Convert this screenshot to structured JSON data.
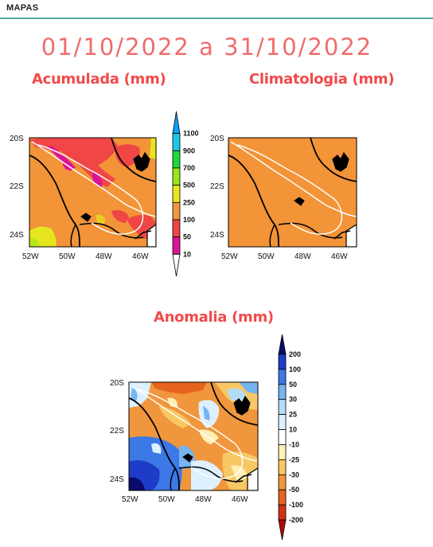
{
  "header": {
    "title": "MAPAS"
  },
  "period": "01/10/2022 a 31/10/2022",
  "maps": {
    "accumulated": {
      "title": "Acumulada (mm)",
      "lat_labels": [
        "20S",
        "22S",
        "24S"
      ],
      "lon_labels": [
        "52W",
        "50W",
        "48W",
        "46W"
      ]
    },
    "climatology": {
      "title": "Climatologia (mm)",
      "lat_labels": [
        "20S",
        "22S",
        "24S"
      ],
      "lon_labels": [
        "52W",
        "50W",
        "48W",
        "46W"
      ]
    },
    "anomaly": {
      "title": "Anomalia (mm)",
      "lat_labels": [
        "20S",
        "22S",
        "24S"
      ],
      "lon_labels": [
        "52W",
        "50W",
        "48W",
        "46W"
      ]
    }
  },
  "colorbars": {
    "precip": {
      "labels": [
        "1100",
        "900",
        "700",
        "500",
        "250",
        "100",
        "50",
        "10"
      ],
      "colors": [
        "#0aa0ff",
        "#1ec6e6",
        "#1ed73c",
        "#96e61e",
        "#e6e61e",
        "#f0963c",
        "#f04646",
        "#dc1496",
        "#ffffff"
      ]
    },
    "anomaly": {
      "labels": [
        "200",
        "100",
        "50",
        "30",
        "25",
        "10",
        "-10",
        "-25",
        "-30",
        "-50",
        "-100",
        "-200"
      ],
      "colors": [
        "#0a0a6e",
        "#1e3cc8",
        "#3c78e6",
        "#78b4f0",
        "#b4dcf8",
        "#dcf0ff",
        "#ffffff",
        "#fff0b4",
        "#f8c864",
        "#f0963c",
        "#e6641e",
        "#d23214",
        "#b40a0a"
      ]
    }
  },
  "colors": {
    "title_red": "#f24a4a",
    "period_red": "#f06c6c",
    "header_rule": "#5aa6a8",
    "map_orange": "#f29437"
  }
}
